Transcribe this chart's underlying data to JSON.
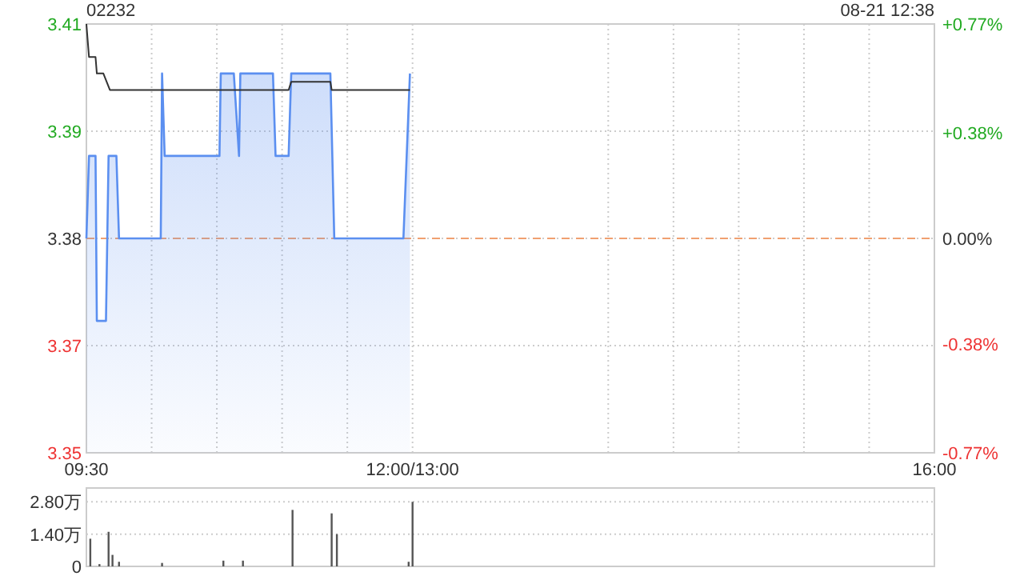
{
  "chart_data": [
    {
      "type": "line",
      "title": "02232",
      "annotations": [
        "08-21 12:38"
      ],
      "xlim": [
        9.5,
        16
      ],
      "xticks": [
        {
          "value": 9.5,
          "label": "09:30"
        },
        {
          "value": 10,
          "label": null
        },
        {
          "value": 10.5,
          "label": null
        },
        {
          "value": 11,
          "label": null
        },
        {
          "value": 11.5,
          "label": null
        },
        {
          "value": 12,
          "label": "12:00/13:00"
        },
        {
          "value": 13.5,
          "label": null
        },
        {
          "value": 14,
          "label": null
        },
        {
          "value": 14.5,
          "label": null
        },
        {
          "value": 15,
          "label": null
        },
        {
          "value": 15.5,
          "label": null
        },
        {
          "value": 16,
          "label": "16:00"
        }
      ],
      "ylim": [
        3.354,
        3.406
      ],
      "yticks": [
        {
          "value": 3.354,
          "label": "3.35"
        },
        {
          "value": 3.367,
          "label": "3.37"
        },
        {
          "value": 3.38,
          "label": "3.38"
        },
        {
          "value": 3.393,
          "label": "3.39"
        },
        {
          "value": 3.406,
          "label": "3.41"
        }
      ],
      "y2lim": [
        -0.77,
        0.77
      ],
      "y2ticks": [
        {
          "value": -0.77,
          "label": "-0.77%"
        },
        {
          "value": -0.38,
          "label": "-0.38%"
        },
        {
          "value": 0,
          "label": "0.00%"
        },
        {
          "value": 0.38,
          "label": "+0.38%"
        },
        {
          "value": 0.77,
          "label": "+0.77%"
        }
      ],
      "ref_lines": [
        {
          "axis": "y",
          "value": 3.38,
          "color": "#f0a070",
          "line_style": "dashed"
        }
      ],
      "grid": true,
      "series": [
        {
          "type": "area",
          "color": "#5b8ff0",
          "x": [
            9.5,
            9.52,
            9.57,
            9.58,
            9.65,
            9.67,
            9.73,
            9.75,
            10.07,
            10.08,
            10.1,
            10.52,
            10.53,
            10.63,
            10.67,
            10.68,
            10.93,
            10.95,
            11.05,
            11.07,
            11.37,
            11.4,
            11.93,
            11.98
          ],
          "values": [
            3.38,
            3.39,
            3.39,
            3.37,
            3.37,
            3.39,
            3.39,
            3.38,
            3.38,
            3.4,
            3.39,
            3.39,
            3.4,
            3.4,
            3.39,
            3.4,
            3.4,
            3.39,
            3.39,
            3.4,
            3.4,
            3.38,
            3.38,
            3.4
          ]
        },
        {
          "type": "line",
          "color": "#333333",
          "x": [
            9.5,
            9.52,
            9.57,
            9.58,
            9.63,
            9.68,
            11.05,
            11.07,
            11.37,
            11.38,
            11.98
          ],
          "values": [
            3.406,
            3.402,
            3.402,
            3.4,
            3.4,
            3.398,
            3.398,
            3.399,
            3.399,
            3.398,
            3.398
          ]
        }
      ]
    },
    {
      "type": "bar",
      "xlim": [
        9.5,
        16
      ],
      "ylim": [
        0,
        3.4
      ],
      "yticks": [
        {
          "value": 0,
          "label": "0"
        },
        {
          "value": 1.4,
          "label": "1.40万"
        },
        {
          "value": 2.8,
          "label": "2.80万"
        }
      ],
      "tick_labels": "y",
      "grid": "y",
      "color": "#555555",
      "x": [
        9.53,
        9.6,
        9.67,
        9.7,
        9.75,
        10.08,
        10.55,
        10.7,
        11.08,
        11.38,
        11.42,
        11.97,
        12.0
      ],
      "values": [
        1.2,
        0.1,
        1.5,
        0.5,
        0.2,
        0.15,
        0.25,
        0.25,
        2.45,
        2.3,
        1.4,
        0.2,
        2.8
      ]
    }
  ]
}
